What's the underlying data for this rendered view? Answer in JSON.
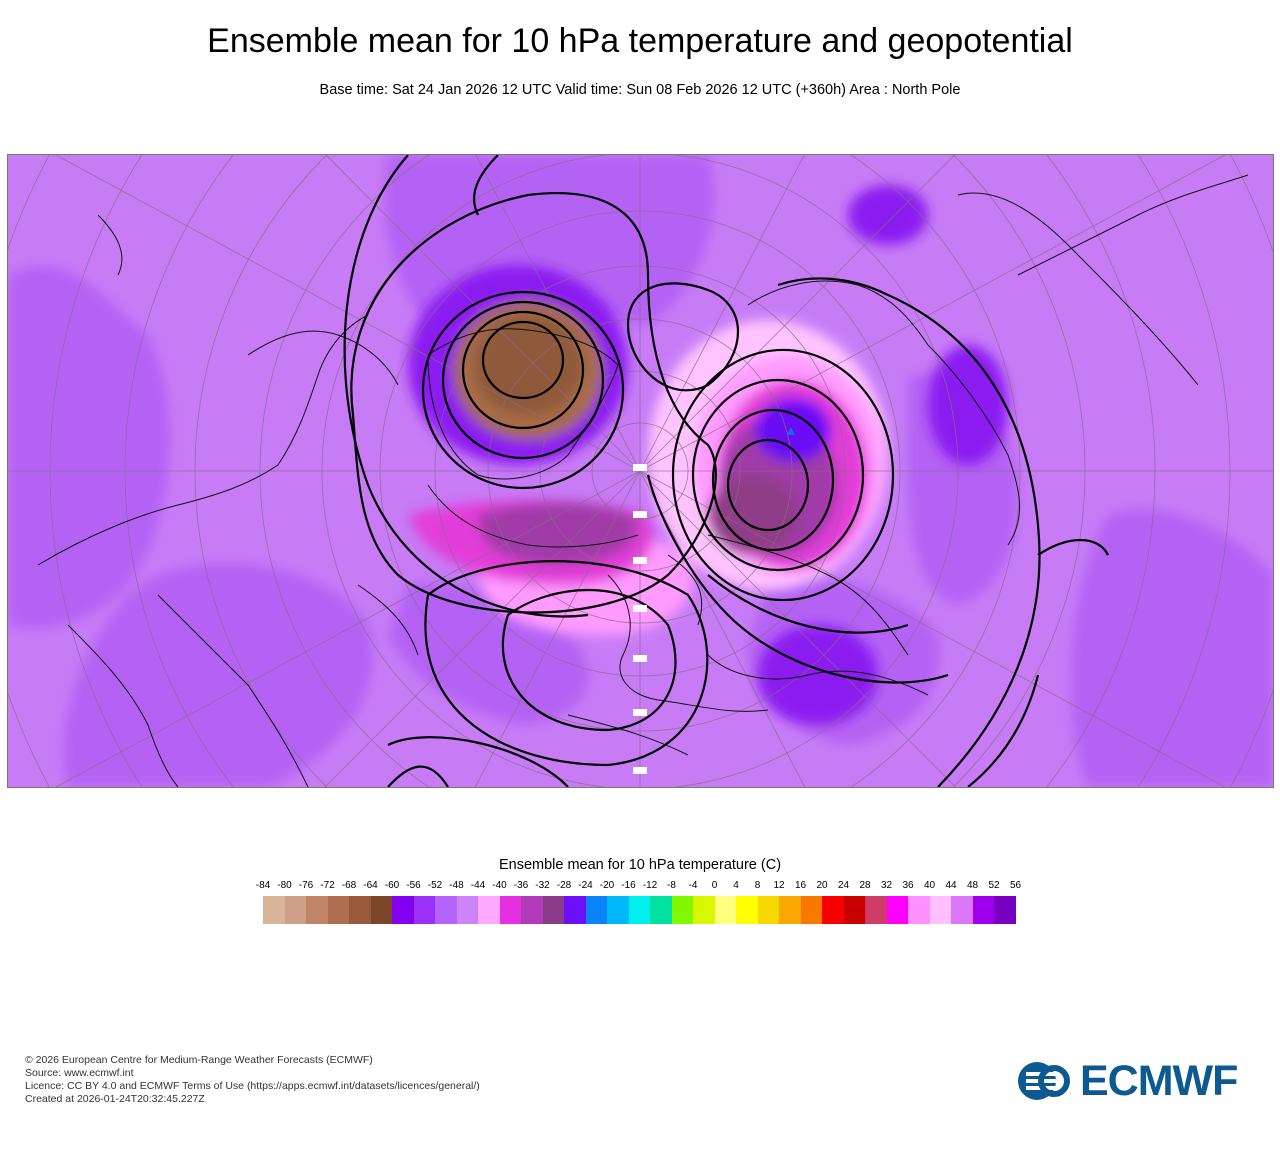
{
  "header": {
    "title": "Ensemble mean for 10 hPa temperature and geopotential",
    "subtitle": "Base time: Sat 24 Jan 2026 12 UTC Valid time: Sun 08 Feb 2026 12 UTC (+360h) Area : North Pole"
  },
  "map": {
    "background_color": "#c77cf6",
    "fill_colors": {
      "light_violet": "#d890fa",
      "violet": "#b462f4",
      "deep_purple": "#8b1ef0",
      "brown_dark": "#8f5a3a",
      "brown": "#a86c44",
      "pink": "#ff9bff",
      "light_pink": "#ffc4ff",
      "magenta": "#e23cd8",
      "dark_magenta": "#a03aa8",
      "plum": "#8e3d86",
      "blue_violet": "#6a10f5",
      "blue": "#0a6ff0"
    }
  },
  "legend": {
    "title": "Ensemble mean for 10 hPa temperature (C)",
    "ticks": [
      "-84",
      "-80",
      "-76",
      "-72",
      "-68",
      "-64",
      "-60",
      "-56",
      "-52",
      "-48",
      "-44",
      "-40",
      "-36",
      "-32",
      "-28",
      "-24",
      "-20",
      "-16",
      "-12",
      "-8",
      "-4",
      "0",
      "4",
      "8",
      "12",
      "16",
      "20",
      "24",
      "28",
      "32",
      "36",
      "40",
      "44",
      "48",
      "52",
      "56"
    ],
    "colors": [
      "#d8b498",
      "#cc9f86",
      "#c08468",
      "#b26e50",
      "#9a5a3a",
      "#7c4628",
      "#8400f0",
      "#9b30f8",
      "#b464f8",
      "#cc84f8",
      "#ffa8ff",
      "#e430e0",
      "#b03ab8",
      "#8a3c88",
      "#6c10f8",
      "#0a84f8",
      "#00b8f8",
      "#00f0f0",
      "#00e0a0",
      "#80f800",
      "#d8f800",
      "#ffff80",
      "#ffff00",
      "#f8d800",
      "#f8a800",
      "#f87800",
      "#f80000",
      "#c80000",
      "#d03c68",
      "#ff00ff",
      "#ff90ff",
      "#ffc0ff",
      "#dc78f8",
      "#a000f0",
      "#7800c0"
    ]
  },
  "credits": {
    "line1": "© 2026 European Centre for Medium-Range Weather Forecasts (ECMWF)",
    "line2": "Source: www.ecmwf.int",
    "line3": "Licence: CC BY 4.0 and ECMWF Terms of Use (https://apps.ecmwf.int/datasets/licences/general/)",
    "line4": "Created at 2026-01-24T20:32:45.227Z"
  },
  "logo": {
    "text": "ECMWF",
    "color": "#0c5a8f"
  }
}
